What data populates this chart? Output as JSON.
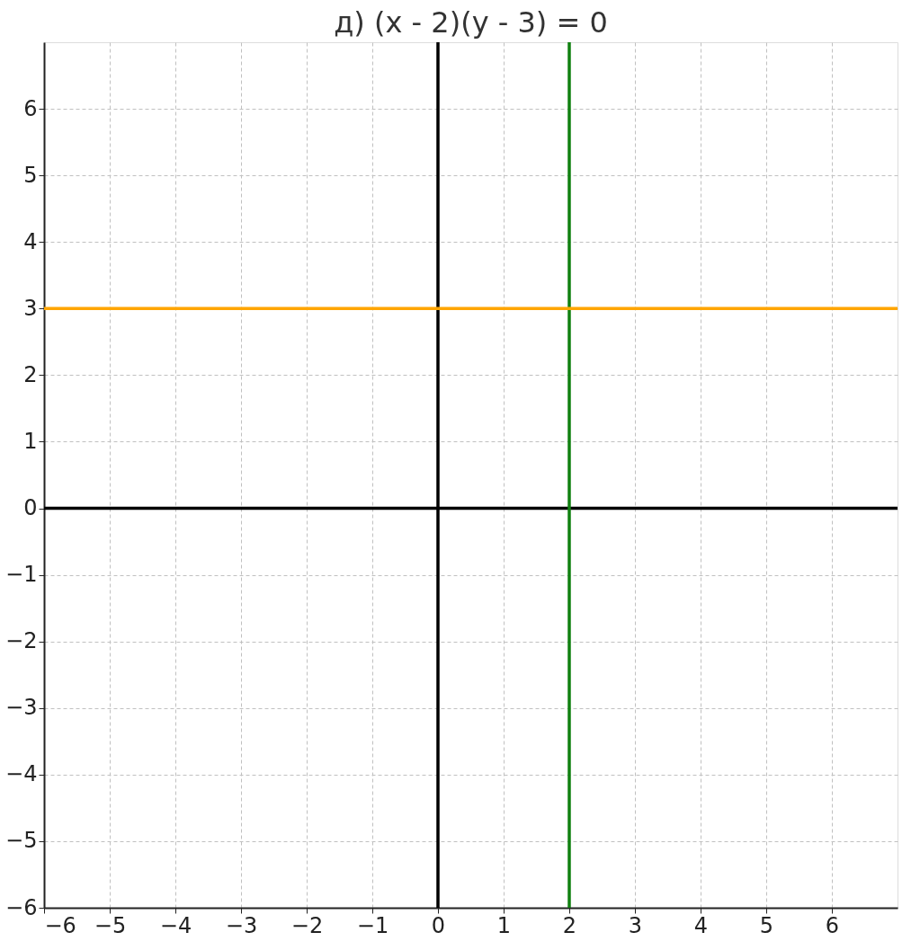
{
  "chart_data": {
    "type": "line",
    "title": "д) (x - 2)(y - 3) = 0",
    "series": [
      {
        "color": "#ffa500",
        "x": [
          -6,
          7
        ],
        "values": [
          3,
          3
        ]
      },
      {
        "color": "#108010",
        "x": [
          2,
          2
        ],
        "values": [
          -6,
          7
        ]
      },
      {
        "color": "#000000",
        "x": [
          0,
          0
        ],
        "values": [
          -6,
          7
        ]
      },
      {
        "color": "#000000",
        "x": [
          -6,
          7
        ],
        "values": [
          0,
          0
        ]
      }
    ],
    "xlim": [
      -6,
      7
    ],
    "ylim": [
      -6,
      7
    ],
    "xticks": [
      -6,
      -5,
      -4,
      -3,
      -2,
      -1,
      0,
      1,
      2,
      3,
      4,
      5,
      6
    ],
    "yticks": [
      -6,
      -5,
      -4,
      -3,
      -2,
      -1,
      0,
      1,
      2,
      3,
      4,
      5,
      6
    ],
    "grid": true,
    "marker": "none",
    "line_style": "solid"
  }
}
